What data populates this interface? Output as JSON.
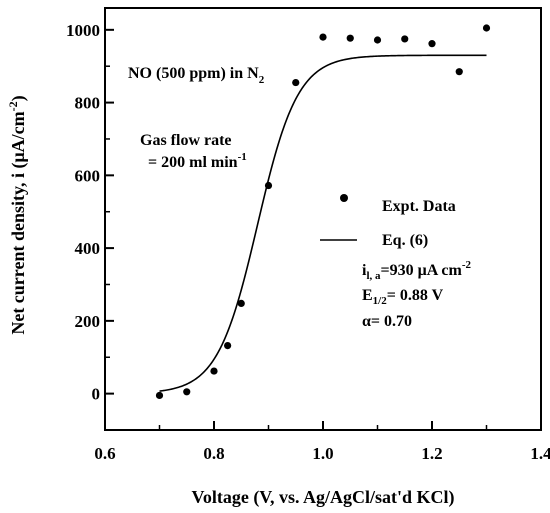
{
  "chart_data": {
    "type": "scatter",
    "xlabel": "Voltage (V, vs. Ag/AgCl/sat'd KCl)",
    "ylabel": "Net current density, i (μA/cm",
    "ylabel_sup": "-2",
    "ylabel_close": ")",
    "xlim": [
      0.6,
      1.4
    ],
    "ylim": [
      -100,
      1060
    ],
    "x_ticks": [
      0.6,
      0.8,
      1.0,
      1.2,
      1.4
    ],
    "x_tick_labels": [
      "0.6",
      "0.8",
      "1.0",
      "1.2",
      "1.4"
    ],
    "y_ticks": [
      0,
      200,
      400,
      600,
      800,
      1000
    ],
    "y_tick_labels": [
      "0",
      "200",
      "400",
      "600",
      "800",
      "1000"
    ],
    "grid": false,
    "legend_position": "center-right",
    "series": [
      {
        "name": "Expt. Data",
        "kind": "points",
        "color": "#000000",
        "x": [
          0.7,
          0.75,
          0.8,
          0.825,
          0.85,
          0.9,
          0.95,
          1.0,
          1.05,
          1.1,
          1.15,
          1.2,
          1.25,
          1.3
        ],
        "y": [
          -5,
          5,
          62,
          132,
          248,
          572,
          855,
          980,
          977,
          972,
          975,
          962,
          885,
          1005
        ]
      },
      {
        "name": "Eq. (6)",
        "kind": "line",
        "color": "#000000",
        "equation": {
          "i_limit": 930,
          "E_half": 0.88,
          "alpha": 0.7
        },
        "x_range": [
          0.7,
          1.3
        ]
      }
    ],
    "annotations": {
      "gas": {
        "main": "NO (500 ppm) in N",
        "sub": "2"
      },
      "flow_line1": "Gas flow rate",
      "flow_line2_main": "= 200 ml min",
      "flow_line2_sup": "-1",
      "param_ila": {
        "main": "i",
        "sub": "l, a",
        "tail": "=930 μA cm",
        "sup": "-2"
      },
      "param_ehalf": {
        "main": "E",
        "sub": "1/2",
        "tail": "= 0.88 V"
      },
      "param_alpha": "α= 0.70"
    }
  }
}
